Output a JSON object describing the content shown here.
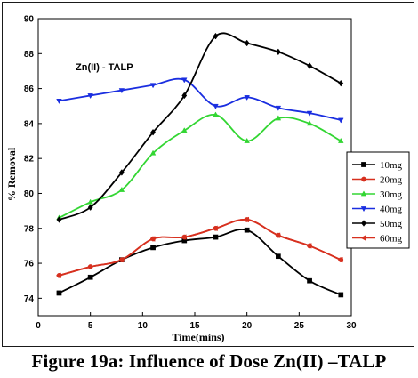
{
  "caption": "Figure 19a: Influence of Dose Zn(II) –TALP",
  "chart_data": {
    "type": "line",
    "annotation": "Zn(II) - TALP",
    "xlabel": "Time(mins)",
    "ylabel": "% Removal",
    "xlim": [
      0,
      30
    ],
    "ylim": [
      73,
      90
    ],
    "xticks": [
      0,
      5,
      10,
      15,
      20,
      25,
      30
    ],
    "yticks": [
      74,
      76,
      78,
      80,
      82,
      84,
      86,
      88,
      90
    ],
    "grid": false,
    "legend_position": "right",
    "series": [
      {
        "name": "10mg",
        "color": "#000000",
        "marker": "square",
        "x": [
          2,
          5,
          8,
          11,
          14,
          17,
          20,
          23,
          26,
          29
        ],
        "y": [
          74.3,
          75.2,
          76.2,
          76.9,
          77.3,
          77.5,
          77.9,
          76.4,
          75.0,
          74.2
        ]
      },
      {
        "name": "20mg",
        "color": "#d7301f",
        "marker": "circle",
        "x": [
          2,
          5,
          8,
          11,
          14,
          17,
          20,
          23,
          26,
          29
        ],
        "y": [
          75.3,
          75.8,
          76.2,
          77.4,
          77.5,
          78.0,
          78.5,
          77.6,
          77.0,
          76.2
        ]
      },
      {
        "name": "30mg",
        "color": "#33d633",
        "marker": "triangle-up",
        "x": [
          2,
          5,
          8,
          11,
          14,
          17,
          20,
          23,
          26,
          29
        ],
        "y": [
          78.6,
          79.5,
          80.2,
          82.3,
          83.6,
          84.5,
          83.0,
          84.3,
          84.0,
          83.0
        ]
      },
      {
        "name": "40mg",
        "color": "#1a2ee0",
        "marker": "triangle-down",
        "x": [
          2,
          5,
          8,
          11,
          14,
          17,
          20,
          23,
          26,
          29
        ],
        "y": [
          85.3,
          85.6,
          85.9,
          86.2,
          86.5,
          85.0,
          85.5,
          84.9,
          84.6,
          84.2
        ]
      },
      {
        "name": "50mg",
        "color": "#000000",
        "marker": "diamond",
        "x": [
          2,
          5,
          8,
          11,
          14,
          17,
          20,
          23,
          26,
          29
        ],
        "y": [
          78.5,
          79.2,
          81.2,
          83.5,
          85.6,
          89.0,
          88.6,
          88.1,
          87.3,
          86.3
        ]
      },
      {
        "name": "60mg",
        "color": "#d7301f",
        "marker": "triangle-left",
        "x": [
          2,
          5,
          8,
          11,
          14,
          17,
          20,
          23,
          26,
          29
        ],
        "y": [
          75.3,
          75.8,
          76.2,
          77.4,
          77.5,
          78.0,
          78.5,
          77.6,
          77.0,
          76.2
        ]
      }
    ]
  }
}
